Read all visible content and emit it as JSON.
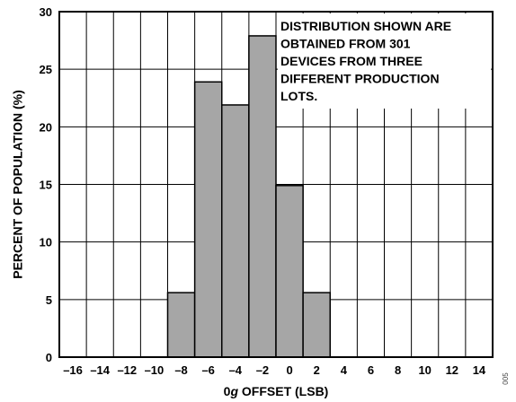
{
  "chart_data": {
    "type": "bar",
    "title": "",
    "xlabel_pre": "0",
    "xlabel_italic": "g",
    "xlabel_post": " OFFSET (LSB)",
    "ylabel": "PERCENT OF POPULATION (%)",
    "xlim": [
      -17,
      15
    ],
    "ylim": [
      0,
      30
    ],
    "x_ticks": [
      -16,
      -14,
      -12,
      -10,
      -8,
      -6,
      -4,
      -2,
      0,
      2,
      4,
      6,
      8,
      10,
      12,
      14
    ],
    "x_tick_labels": [
      "–16",
      "–14",
      "–12",
      "–10",
      "–8",
      "–6",
      "–4",
      "–2",
      "0",
      "2",
      "4",
      "6",
      "8",
      "10",
      "12",
      "14"
    ],
    "y_ticks": [
      0,
      5,
      10,
      15,
      20,
      25,
      30
    ],
    "y_tick_labels": [
      "0",
      "5",
      "10",
      "15",
      "20",
      "25",
      "30"
    ],
    "grid": true,
    "bin_width": 2,
    "bars": [
      {
        "x_start": -9,
        "x_end": -7,
        "value": 5.6
      },
      {
        "x_start": -7,
        "x_end": -5,
        "value": 23.9
      },
      {
        "x_start": -5,
        "x_end": -3,
        "value": 21.9
      },
      {
        "x_start": -3,
        "x_end": -1,
        "value": 27.9
      },
      {
        "x_start": -1,
        "x_end": 1,
        "value": 14.9
      },
      {
        "x_start": 1,
        "x_end": 3,
        "value": 5.6
      }
    ],
    "bar_color": "#a6a6a6",
    "annotation": [
      "DISTRIBUTION SHOWN ARE",
      "OBTAINED FROM 301",
      "DEVICES FROM THREE",
      "DIFFERENT PRODUCTION",
      "LOTS."
    ],
    "figure_code": "005"
  }
}
